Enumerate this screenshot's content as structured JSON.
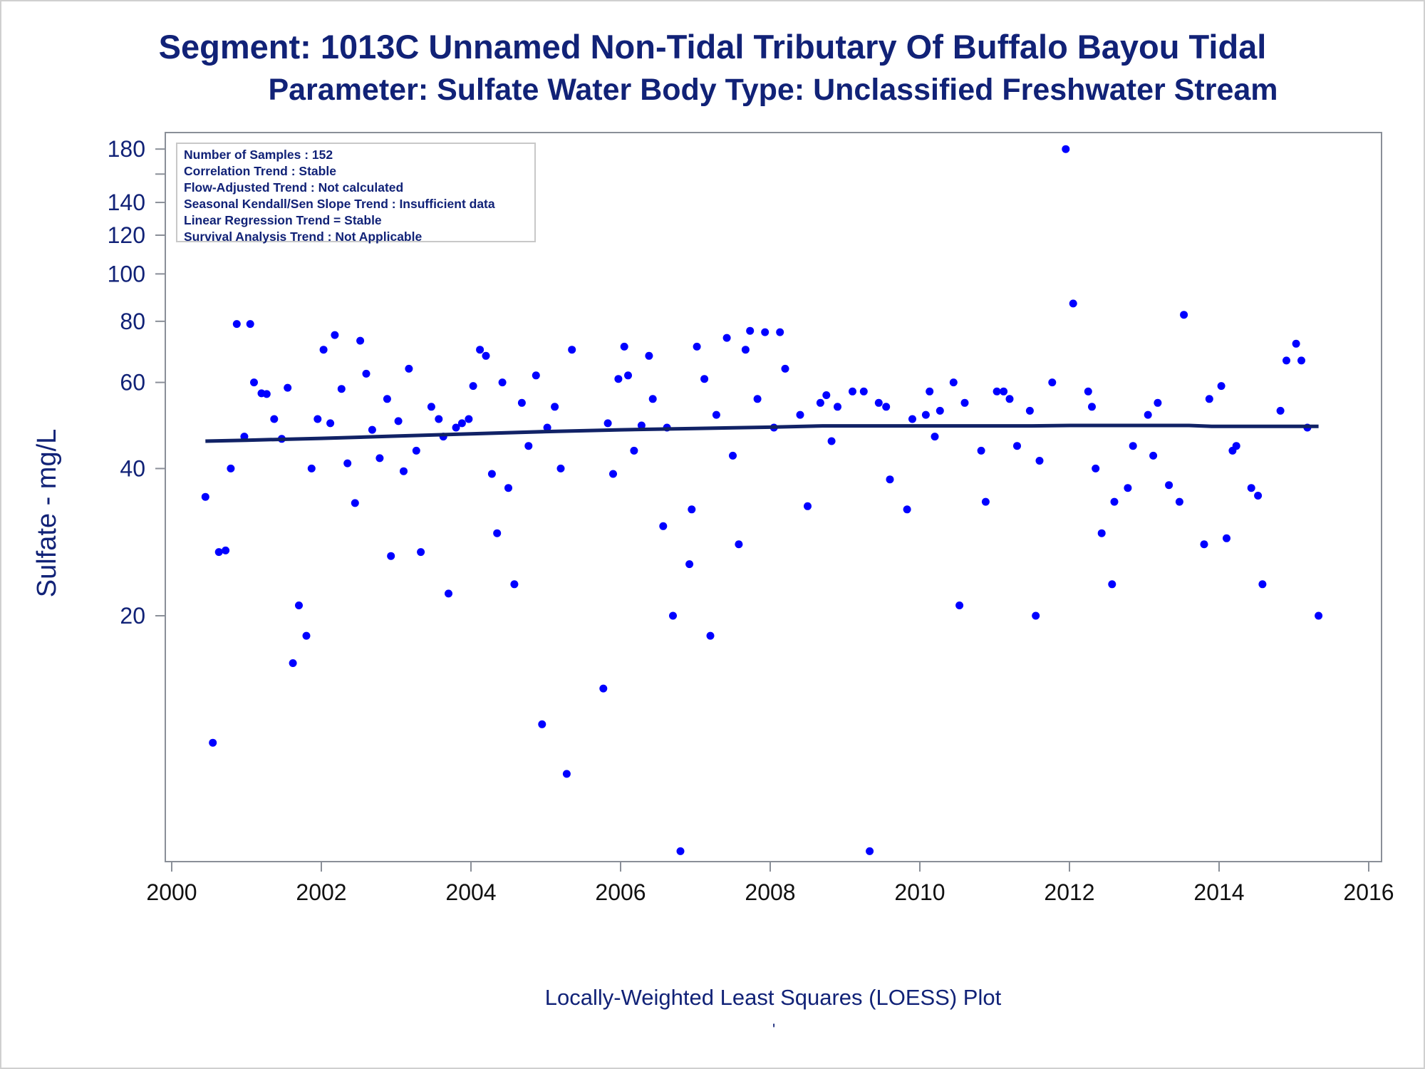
{
  "title": {
    "line1": "Segment: 1013C  Unnamed Non-Tidal Tributary Of Buffalo Bayou Tidal",
    "line2": "Parameter: Sulfate   Water Body Type: Unclassified Freshwater Stream"
  },
  "stats": [
    "Number of Samples : 152",
    "Correlation Trend : Stable",
    "Flow-Adjusted Trend : Not calculated",
    "Seasonal Kendall/Sen Slope Trend : Insufficient data",
    "Linear Regression Trend = Stable",
    "Survival Analysis Trend : Not Applicable"
  ],
  "footnote": "Locally-Weighted Least Squares (LOESS) Plot",
  "footnote_mark": "'",
  "colors": {
    "points": "#0000ff",
    "loess": "#112266",
    "text": "#112277",
    "axis": "#8a8f98"
  },
  "chart_data": {
    "type": "scatter",
    "ylabel": "Sulfate - mg/L",
    "xlabel": "",
    "yscale": "log",
    "xlim": [
      2000,
      2016
    ],
    "ylim": [
      6.5,
      185
    ],
    "x_ticks": [
      2000,
      2002,
      2004,
      2006,
      2008,
      2010,
      2012,
      2014,
      2016
    ],
    "y_ticks": [
      20,
      40,
      60,
      80,
      100,
      120,
      140,
      180
    ],
    "y_minor_ticks": [
      160
    ],
    "grid": false,
    "points": [
      [
        2000.45,
        35
      ],
      [
        2000.55,
        11
      ],
      [
        2000.63,
        27
      ],
      [
        2000.72,
        27.2
      ],
      [
        2000.79,
        40
      ],
      [
        2000.87,
        79
      ],
      [
        2000.97,
        46.5
      ],
      [
        2001.05,
        79
      ],
      [
        2001.1,
        60
      ],
      [
        2001.2,
        57
      ],
      [
        2001.27,
        56.8
      ],
      [
        2001.37,
        50.5
      ],
      [
        2001.47,
        46
      ],
      [
        2001.55,
        58.5
      ],
      [
        2001.62,
        16
      ],
      [
        2001.7,
        21
      ],
      [
        2001.8,
        18.2
      ],
      [
        2001.87,
        40
      ],
      [
        2001.95,
        50.5
      ],
      [
        2002.03,
        70
      ],
      [
        2002.12,
        49.5
      ],
      [
        2002.18,
        75
      ],
      [
        2002.27,
        58.2
      ],
      [
        2002.35,
        41
      ],
      [
        2002.45,
        34
      ],
      [
        2002.52,
        73
      ],
      [
        2002.6,
        62.5
      ],
      [
        2002.68,
        48
      ],
      [
        2002.78,
        42
      ],
      [
        2002.88,
        55.5
      ],
      [
        2002.93,
        26.5
      ],
      [
        2003.03,
        50
      ],
      [
        2003.1,
        39.5
      ],
      [
        2003.17,
        64
      ],
      [
        2003.27,
        43.5
      ],
      [
        2003.33,
        27
      ],
      [
        2003.47,
        53.5
      ],
      [
        2003.57,
        50.5
      ],
      [
        2003.63,
        46.5
      ],
      [
        2003.7,
        22.2
      ],
      [
        2003.8,
        48.5
      ],
      [
        2003.88,
        49.5
      ],
      [
        2003.97,
        50.5
      ],
      [
        2004.03,
        59
      ],
      [
        2004.12,
        70
      ],
      [
        2004.2,
        68
      ],
      [
        2004.28,
        39
      ],
      [
        2004.35,
        29.5
      ],
      [
        2004.42,
        60
      ],
      [
        2004.5,
        36.5
      ],
      [
        2004.58,
        23.2
      ],
      [
        2004.68,
        54.5
      ],
      [
        2004.77,
        44.5
      ],
      [
        2004.87,
        62
      ],
      [
        2004.95,
        12
      ],
      [
        2005.02,
        48.5
      ],
      [
        2005.12,
        53.5
      ],
      [
        2005.2,
        40
      ],
      [
        2005.28,
        9.5
      ],
      [
        2005.35,
        70
      ],
      [
        2005.77,
        14.2
      ],
      [
        2005.83,
        49.5
      ],
      [
        2005.9,
        39
      ],
      [
        2005.97,
        61
      ],
      [
        2006.05,
        71
      ],
      [
        2006.1,
        62
      ],
      [
        2006.18,
        43.5
      ],
      [
        2006.28,
        49
      ],
      [
        2006.38,
        68
      ],
      [
        2006.43,
        55.5
      ],
      [
        2006.57,
        30.5
      ],
      [
        2006.62,
        48.5
      ],
      [
        2006.7,
        20
      ],
      [
        2006.8,
        6.6
      ],
      [
        2006.92,
        25.5
      ],
      [
        2006.95,
        33
      ],
      [
        2007.02,
        71
      ],
      [
        2007.12,
        61
      ],
      [
        2007.2,
        18.2
      ],
      [
        2007.28,
        51.5
      ],
      [
        2007.42,
        74
      ],
      [
        2007.5,
        42.5
      ],
      [
        2007.58,
        28
      ],
      [
        2007.67,
        70
      ],
      [
        2007.73,
        76.5
      ],
      [
        2007.83,
        55.5
      ],
      [
        2007.93,
        76
      ],
      [
        2008.05,
        48.5
      ],
      [
        2008.13,
        76
      ],
      [
        2008.2,
        64
      ],
      [
        2008.4,
        51.5
      ],
      [
        2008.5,
        33.5
      ],
      [
        2008.67,
        54.5
      ],
      [
        2008.75,
        56.5
      ],
      [
        2008.82,
        45.5
      ],
      [
        2008.9,
        53.5
      ],
      [
        2009.1,
        57.5
      ],
      [
        2009.25,
        57.5
      ],
      [
        2009.33,
        6.6
      ],
      [
        2009.45,
        54.5
      ],
      [
        2009.55,
        53.5
      ],
      [
        2009.6,
        38
      ],
      [
        2009.83,
        33
      ],
      [
        2009.9,
        50.5
      ],
      [
        2010.08,
        51.5
      ],
      [
        2010.13,
        57.5
      ],
      [
        2010.2,
        46.5
      ],
      [
        2010.27,
        52.5
      ],
      [
        2010.45,
        60
      ],
      [
        2010.53,
        21
      ],
      [
        2010.6,
        54.5
      ],
      [
        2010.82,
        43.5
      ],
      [
        2010.88,
        34.2
      ],
      [
        2011.03,
        57.5
      ],
      [
        2011.12,
        57.5
      ],
      [
        2011.2,
        55.5
      ],
      [
        2011.3,
        44.5
      ],
      [
        2011.47,
        52.5
      ],
      [
        2011.55,
        20
      ],
      [
        2011.6,
        41.5
      ],
      [
        2011.77,
        60
      ],
      [
        2011.95,
        180
      ],
      [
        2012.05,
        87
      ],
      [
        2012.25,
        57.5
      ],
      [
        2012.3,
        53.5
      ],
      [
        2012.35,
        40
      ],
      [
        2012.43,
        29.5
      ],
      [
        2012.57,
        23.2
      ],
      [
        2012.6,
        34.2
      ],
      [
        2012.78,
        36.5
      ],
      [
        2012.85,
        44.5
      ],
      [
        2013.05,
        51.5
      ],
      [
        2013.12,
        42.5
      ],
      [
        2013.18,
        54.5
      ],
      [
        2013.33,
        37
      ],
      [
        2013.47,
        34.2
      ],
      [
        2013.53,
        82.5
      ],
      [
        2013.8,
        28
      ],
      [
        2013.87,
        55.5
      ],
      [
        2014.03,
        59
      ],
      [
        2014.1,
        28.8
      ],
      [
        2014.18,
        43.5
      ],
      [
        2014.23,
        44.5
      ],
      [
        2014.43,
        36.5
      ],
      [
        2014.52,
        35.2
      ],
      [
        2014.58,
        23.2
      ],
      [
        2014.82,
        52.5
      ],
      [
        2014.9,
        66.5
      ],
      [
        2015.03,
        72
      ],
      [
        2015.1,
        66.5
      ],
      [
        2015.18,
        48.5
      ],
      [
        2015.33,
        20
      ]
    ],
    "loess_series": {
      "x": [
        2000.45,
        2001.0,
        2002.0,
        2003.0,
        2004.0,
        2005.0,
        2006.0,
        2007.0,
        2008.0,
        2008.7,
        2009.5,
        2010.5,
        2011.5,
        2012.0,
        2013.0,
        2013.6,
        2013.9,
        2014.5,
        2015.33
      ],
      "y": [
        45.5,
        45.7,
        46.1,
        46.6,
        47.1,
        47.6,
        48.0,
        48.3,
        48.6,
        48.9,
        48.9,
        48.9,
        48.9,
        49.0,
        49.0,
        49.0,
        48.8,
        48.8,
        48.8
      ]
    }
  }
}
